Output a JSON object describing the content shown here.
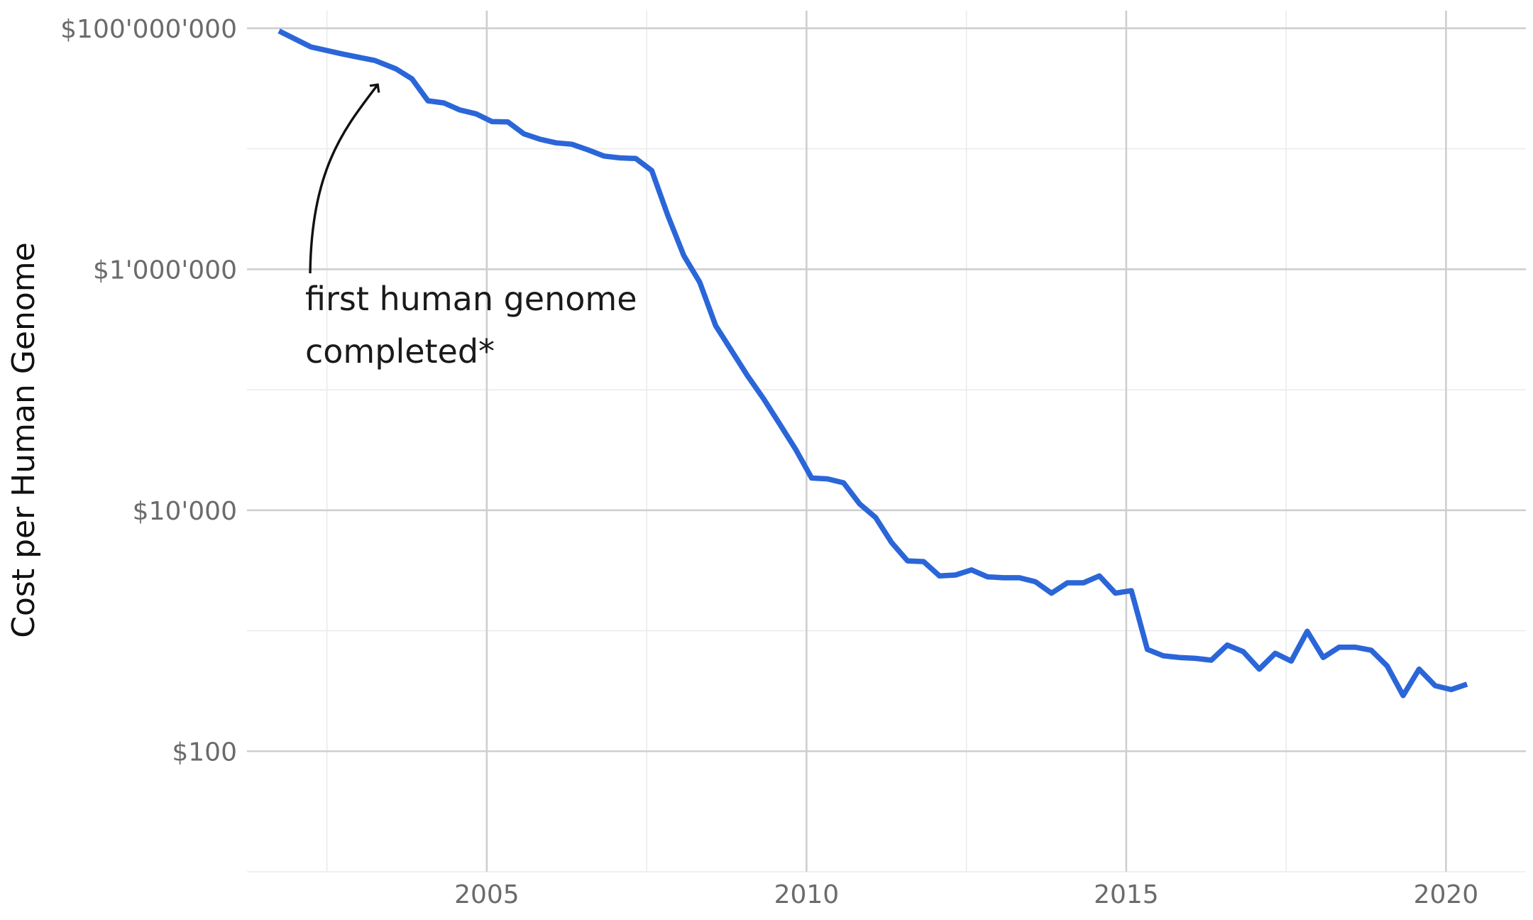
{
  "chart_data": {
    "type": "line",
    "title": "",
    "xlabel": "",
    "ylabel": "Cost per Human Genome",
    "y_scale": "log",
    "xlim": [
      2001.25,
      2021.25
    ],
    "ylim": [
      10,
      140000000
    ],
    "grid": true,
    "legend": "none",
    "x_ticks": [
      {
        "value": 2005,
        "label": "2005"
      },
      {
        "value": 2010,
        "label": "2010"
      },
      {
        "value": 2015,
        "label": "2015"
      },
      {
        "value": 2020,
        "label": "2020"
      }
    ],
    "x_minor_ticks": [
      2002.5,
      2007.5,
      2012.5,
      2017.5
    ],
    "y_ticks": [
      {
        "value": 100,
        "label": "$100"
      },
      {
        "value": 10000,
        "label": "$10'000"
      },
      {
        "value": 1000000,
        "label": "$1'000'000"
      },
      {
        "value": 100000000,
        "label": "$100'000'000"
      }
    ],
    "y_minor_ticks": [
      10,
      1000,
      100000,
      10000000
    ],
    "series": [
      {
        "color": "#2b66d8",
        "x": [
          2001.75,
          2002.25,
          2002.75,
          2003.25,
          2003.58,
          2003.83,
          2004.08,
          2004.33,
          2004.58,
          2004.83,
          2005.08,
          2005.33,
          2005.58,
          2005.83,
          2006.08,
          2006.33,
          2006.58,
          2006.83,
          2007.08,
          2007.33,
          2007.58,
          2007.83,
          2008.08,
          2008.33,
          2008.58,
          2008.83,
          2009.08,
          2009.33,
          2009.58,
          2009.83,
          2010.08,
          2010.33,
          2010.58,
          2010.83,
          2011.08,
          2011.33,
          2011.58,
          2011.83,
          2012.08,
          2012.33,
          2012.58,
          2012.83,
          2013.08,
          2013.33,
          2013.58,
          2013.83,
          2014.08,
          2014.33,
          2014.58,
          2014.83,
          2015.08,
          2015.33,
          2015.58,
          2015.83,
          2016.08,
          2016.33,
          2016.58,
          2016.83,
          2017.08,
          2017.33,
          2017.58,
          2017.83,
          2018.08,
          2018.33,
          2018.58,
          2018.83,
          2019.08,
          2019.33,
          2019.58,
          2019.83,
          2020.08,
          2020.33
        ],
        "y": [
          95000000,
          70000000,
          61000000,
          54000000,
          46000000,
          38000000,
          25000000,
          24000000,
          21000000,
          19500000,
          16800000,
          16700000,
          13300000,
          12000000,
          11200000,
          10900000,
          9800000,
          8700000,
          8400000,
          8300000,
          6600000,
          2800000,
          1300000,
          780000,
          340000,
          210000,
          130000,
          84000,
          52000,
          32000,
          18500,
          18200,
          16900,
          11300,
          8700,
          5400,
          3800,
          3750,
          2850,
          2900,
          3200,
          2800,
          2750,
          2750,
          2550,
          2050,
          2500,
          2500,
          2850,
          2050,
          2150,
          700,
          620,
          600,
          590,
          570,
          760,
          670,
          480,
          650,
          560,
          990,
          600,
          730,
          730,
          690,
          510,
          290,
          480,
          350,
          325,
          360
        ]
      }
    ],
    "annotation": {
      "lines": [
        "first human genome",
        "completed*"
      ],
      "arrow_target_x": 2003.25
    }
  }
}
